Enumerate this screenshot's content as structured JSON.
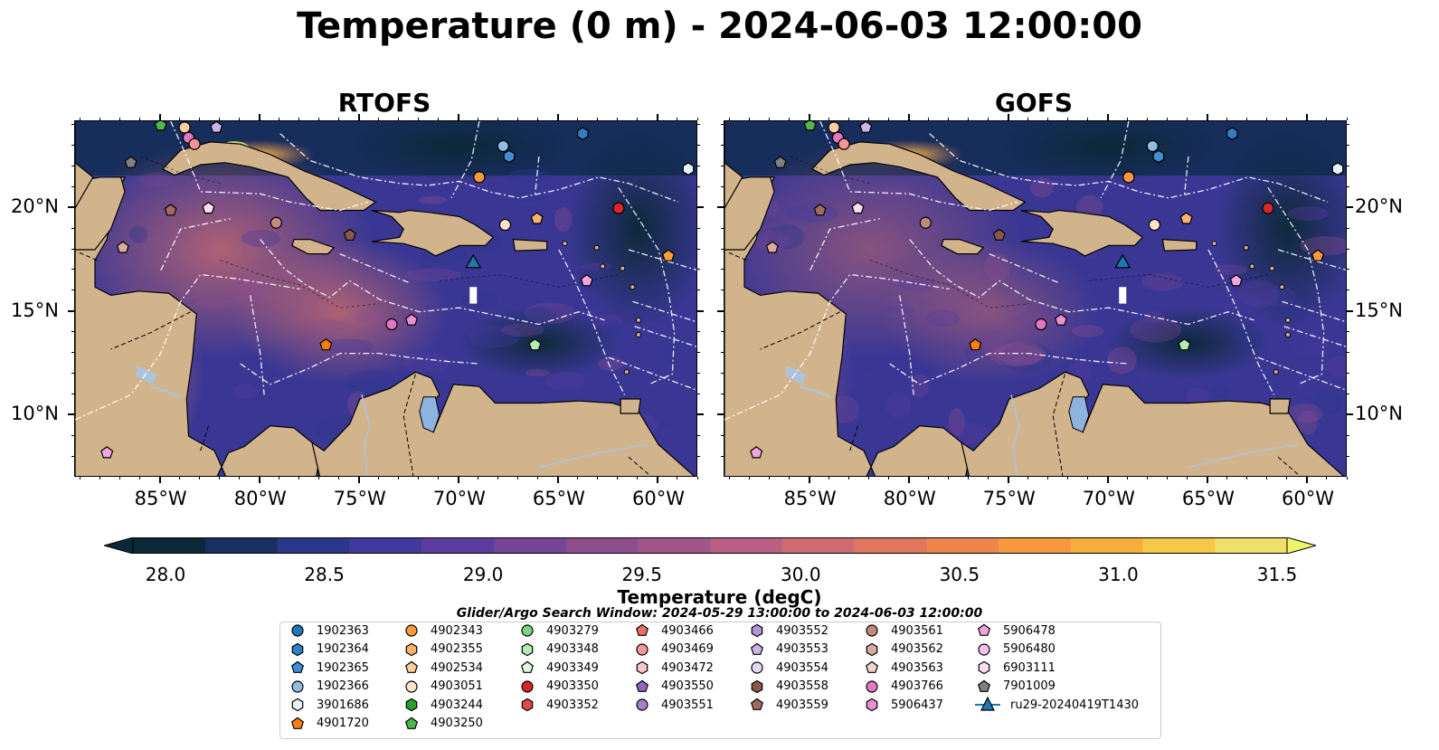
{
  "title": "Temperature (0 m) - 2024-06-03 12:00:00",
  "panels": [
    {
      "title": "RTOFS"
    },
    {
      "title": "GOFS"
    }
  ],
  "axes": {
    "lat_labels": [
      "20°N",
      "15°N",
      "10°N"
    ],
    "lon_labels": [
      "85°W",
      "80°W",
      "75°W",
      "70°W",
      "65°W",
      "60°W"
    ]
  },
  "colors": {
    "land": "#d2b48c",
    "ocean_low": "#0b2836",
    "ocean_mid": "#46389a",
    "ocean_high": "#f4b94a",
    "lake": "#8fb3e0",
    "river": "#aac4df"
  },
  "colorbar": {
    "label": "Temperature (degC)",
    "ticks": [
      "28.0",
      "28.5",
      "29.0",
      "29.5",
      "30.0",
      "30.5",
      "31.0",
      "31.5"
    ],
    "min": 28.0,
    "max": 31.5,
    "colors": [
      "#0b2836",
      "#17305f",
      "#2b378a",
      "#41399e",
      "#5a3d9f",
      "#744596",
      "#8c4d8d",
      "#a2558a",
      "#b85f83",
      "#cd6a73",
      "#e1765e",
      "#ef844c",
      "#f6983e",
      "#f7ae3b",
      "#f5c848",
      "#eee069"
    ],
    "extend": "both"
  },
  "search_window": "Glider/Argo Search Window: 2024-05-29 13:00:00 to 2024-06-03 12:00:00",
  "legend": {
    "columns": [
      [
        {
          "label": "1902363",
          "marker": "circle",
          "color": "#1f77b4"
        },
        {
          "label": "1902364",
          "marker": "hexagon",
          "color": "#2f7fc1"
        },
        {
          "label": "1902365",
          "marker": "pentagon",
          "color": "#3e8ed4"
        },
        {
          "label": "1902366",
          "marker": "circle",
          "color": "#8fbde6"
        },
        {
          "label": "3901686",
          "marker": "hexagon",
          "color": "#e8f2fb"
        },
        {
          "label": "4901720",
          "marker": "pentagon",
          "color": "#ff7f0e"
        }
      ],
      [
        {
          "label": "4902343",
          "marker": "circle",
          "color": "#ff9a3c"
        },
        {
          "label": "4902355",
          "marker": "hexagon",
          "color": "#ffb26b"
        },
        {
          "label": "4902534",
          "marker": "pentagon",
          "color": "#ffcf9e"
        },
        {
          "label": "4903051",
          "marker": "circle",
          "color": "#ffe4c8"
        },
        {
          "label": "4903244",
          "marker": "hexagon",
          "color": "#2ca02c"
        },
        {
          "label": "4903250",
          "marker": "pentagon",
          "color": "#4cb84c"
        }
      ],
      [
        {
          "label": "4903279",
          "marker": "circle",
          "color": "#7bd67b"
        },
        {
          "label": "4903348",
          "marker": "hexagon",
          "color": "#b2ecb2"
        },
        {
          "label": "4903349",
          "marker": "pentagon",
          "color": "#dff8df"
        },
        {
          "label": "4903350",
          "marker": "circle",
          "color": "#d62728"
        },
        {
          "label": "4903352",
          "marker": "hexagon",
          "color": "#e04a4a"
        }
      ],
      [
        {
          "label": "4903466",
          "marker": "pentagon",
          "color": "#ee6c6c"
        },
        {
          "label": "4903469",
          "marker": "circle",
          "color": "#f59797"
        },
        {
          "label": "4903472",
          "marker": "hexagon",
          "color": "#fbc6c6"
        },
        {
          "label": "4903550",
          "marker": "pentagon",
          "color": "#9467bd"
        },
        {
          "label": "4903551",
          "marker": "circle",
          "color": "#a57fcb"
        }
      ],
      [
        {
          "label": "4903552",
          "marker": "hexagon",
          "color": "#b494d8"
        },
        {
          "label": "4903553",
          "marker": "pentagon",
          "color": "#cdb4e6"
        },
        {
          "label": "4903554",
          "marker": "circle",
          "color": "#e6d8f3"
        },
        {
          "label": "4903558",
          "marker": "hexagon",
          "color": "#8c564b"
        },
        {
          "label": "4903559",
          "marker": "pentagon",
          "color": "#a36b5f"
        }
      ],
      [
        {
          "label": "4903561",
          "marker": "circle",
          "color": "#bf8b7f"
        },
        {
          "label": "4903562",
          "marker": "hexagon",
          "color": "#d8aa9e"
        },
        {
          "label": "4903563",
          "marker": "pentagon",
          "color": "#f0d5cc"
        },
        {
          "label": "4903766",
          "marker": "circle",
          "color": "#e377c2"
        },
        {
          "label": "5906437",
          "marker": "hexagon",
          "color": "#ea8fd0"
        }
      ],
      [
        {
          "label": "5906478",
          "marker": "pentagon",
          "color": "#f0a6dc"
        },
        {
          "label": "5906480",
          "marker": "circle",
          "color": "#f5c1e7"
        },
        {
          "label": "6903111",
          "marker": "hexagon",
          "color": "#fbdef2"
        },
        {
          "label": "7901009",
          "marker": "pentagon",
          "color": "#7f7f7f"
        },
        {
          "label": "ru29-20240419T1430",
          "marker": "triangle-line",
          "color": "#1f77b4"
        }
      ]
    ]
  },
  "floats": [
    {
      "lon": -85.0,
      "lat": 24.0,
      "marker": "pentagon",
      "color": "#4cb84c"
    },
    {
      "lon": -83.8,
      "lat": 23.9,
      "marker": "circle",
      "color": "#ffcf9e"
    },
    {
      "lon": -82.2,
      "lat": 23.9,
      "marker": "pentagon",
      "color": "#cdb4e6"
    },
    {
      "lon": -83.6,
      "lat": 23.4,
      "marker": "circle",
      "color": "#e377c2"
    },
    {
      "lon": -83.3,
      "lat": 23.1,
      "marker": "circle",
      "color": "#f59797"
    },
    {
      "lon": -86.5,
      "lat": 22.2,
      "marker": "pentagon",
      "color": "#7f7f7f"
    },
    {
      "lon": -84.5,
      "lat": 19.9,
      "marker": "pentagon",
      "color": "#a36b5f"
    },
    {
      "lon": -82.6,
      "lat": 20.0,
      "marker": "pentagon",
      "color": "#fbdef2"
    },
    {
      "lon": -79.2,
      "lat": 19.3,
      "marker": "circle",
      "color": "#bf8b7f"
    },
    {
      "lon": -86.9,
      "lat": 18.1,
      "marker": "pentagon",
      "color": "#d8aa9e"
    },
    {
      "lon": -75.5,
      "lat": 18.7,
      "marker": "pentagon",
      "color": "#8c564b"
    },
    {
      "lon": -67.8,
      "lat": 23.0,
      "marker": "circle",
      "color": "#8fbde6"
    },
    {
      "lon": -67.5,
      "lat": 22.5,
      "marker": "hexagon",
      "color": "#3e8ed4"
    },
    {
      "lon": -63.8,
      "lat": 23.6,
      "marker": "hexagon",
      "color": "#2f7fc1"
    },
    {
      "lon": -58.5,
      "lat": 21.9,
      "marker": "hexagon",
      "color": "#e8f2fb"
    },
    {
      "lon": -69.0,
      "lat": 21.5,
      "marker": "circle",
      "color": "#ff9a3c"
    },
    {
      "lon": -67.7,
      "lat": 19.2,
      "marker": "circle",
      "color": "#ffe4c8"
    },
    {
      "lon": -66.1,
      "lat": 19.5,
      "marker": "pentagon",
      "color": "#ffb26b"
    },
    {
      "lon": -62.0,
      "lat": 20.0,
      "marker": "circle",
      "color": "#d62728"
    },
    {
      "lon": -59.5,
      "lat": 17.7,
      "marker": "pentagon",
      "color": "#ff9a3c"
    },
    {
      "lon": -63.6,
      "lat": 16.5,
      "marker": "pentagon",
      "color": "#f0a6dc"
    },
    {
      "lon": -73.4,
      "lat": 14.4,
      "marker": "circle",
      "color": "#e377c2"
    },
    {
      "lon": -72.4,
      "lat": 14.6,
      "marker": "pentagon",
      "color": "#ea8fd0"
    },
    {
      "lon": -76.7,
      "lat": 13.4,
      "marker": "pentagon",
      "color": "#ff7f0e"
    },
    {
      "lon": -66.2,
      "lat": 13.4,
      "marker": "pentagon",
      "color": "#b2ecb2"
    },
    {
      "lon": -87.7,
      "lat": 8.2,
      "marker": "pentagon",
      "color": "#f0a6dc"
    }
  ],
  "glider": {
    "lon": -69.3,
    "lat": 16.2,
    "lat_top": 17.4,
    "color": "#1f77b4"
  }
}
